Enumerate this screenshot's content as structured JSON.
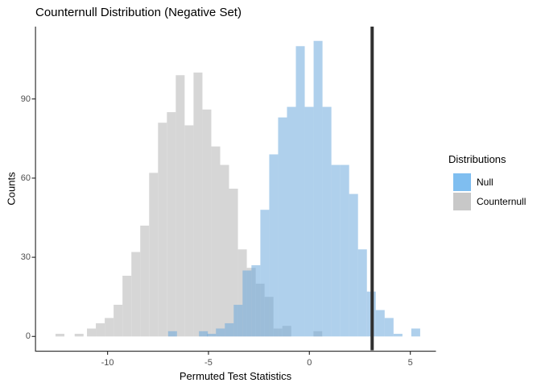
{
  "chart_data": {
    "type": "bar",
    "subtype": "overlaid-histograms",
    "title": "Counternull Distribution (Negative Set)",
    "xlabel": "Permuted Test Statistics",
    "ylabel": "Counts",
    "legend_title": "Distributions",
    "legend_position": "right",
    "grid": false,
    "x_ticks": [
      -10,
      -5,
      0,
      5
    ],
    "y_ticks": [
      0,
      30,
      60,
      90
    ],
    "xlim": [
      -13.6,
      6.3
    ],
    "ylim": [
      0,
      117.6
    ],
    "binwidth": 0.44,
    "vline_x": 3.11,
    "colors": {
      "null_key": "#7fbef0",
      "counternull_key": "#c8c8c8",
      "null_fill": "rgba(110,170,220,0.55)",
      "counternull_fill": "#d6d6d6",
      "vline": "#303030",
      "axis": "#333333",
      "tick_label": "#4d4d4d",
      "background": "#ffffff"
    },
    "series": [
      {
        "name": "Null",
        "key_color": "#7fbef0",
        "fill": "rgba(110,170,220,0.55)",
        "bars_x_count": [
          [
            -6.78,
            2
          ],
          [
            -5.25,
            2
          ],
          [
            -4.85,
            1
          ],
          [
            -4.41,
            3
          ],
          [
            -3.97,
            5
          ],
          [
            -3.53,
            12
          ],
          [
            -3.09,
            25
          ],
          [
            -2.65,
            27
          ],
          [
            -2.21,
            48
          ],
          [
            -1.77,
            69
          ],
          [
            -1.33,
            83
          ],
          [
            -0.89,
            87
          ],
          [
            -0.45,
            110
          ],
          [
            -0.01,
            87
          ],
          [
            0.43,
            112
          ],
          [
            0.87,
            87
          ],
          [
            1.31,
            65
          ],
          [
            1.75,
            65
          ],
          [
            2.19,
            54
          ],
          [
            2.63,
            33
          ],
          [
            3.07,
            17
          ],
          [
            3.51,
            10
          ],
          [
            3.95,
            7
          ],
          [
            4.39,
            1
          ],
          [
            5.27,
            3
          ]
        ]
      },
      {
        "name": "Counternull",
        "key_color": "#c8c8c8",
        "fill": "#d6d6d6",
        "bars_x_count": [
          [
            -12.36,
            1
          ],
          [
            -11.41,
            1
          ],
          [
            -10.8,
            3
          ],
          [
            -10.36,
            5
          ],
          [
            -9.92,
            7
          ],
          [
            -9.48,
            12
          ],
          [
            -9.04,
            23
          ],
          [
            -8.6,
            32
          ],
          [
            -8.16,
            42
          ],
          [
            -7.72,
            62
          ],
          [
            -7.28,
            81
          ],
          [
            -6.84,
            85
          ],
          [
            -6.4,
            99
          ],
          [
            -5.96,
            80
          ],
          [
            -5.52,
            100
          ],
          [
            -5.08,
            86
          ],
          [
            -4.64,
            72
          ],
          [
            -4.2,
            65
          ],
          [
            -3.76,
            56
          ],
          [
            -3.32,
            33
          ],
          [
            -2.88,
            26
          ],
          [
            -2.44,
            20
          ],
          [
            -2.0,
            15
          ],
          [
            -1.56,
            3
          ],
          [
            -1.12,
            4
          ],
          [
            0.42,
            2
          ]
        ]
      }
    ]
  }
}
